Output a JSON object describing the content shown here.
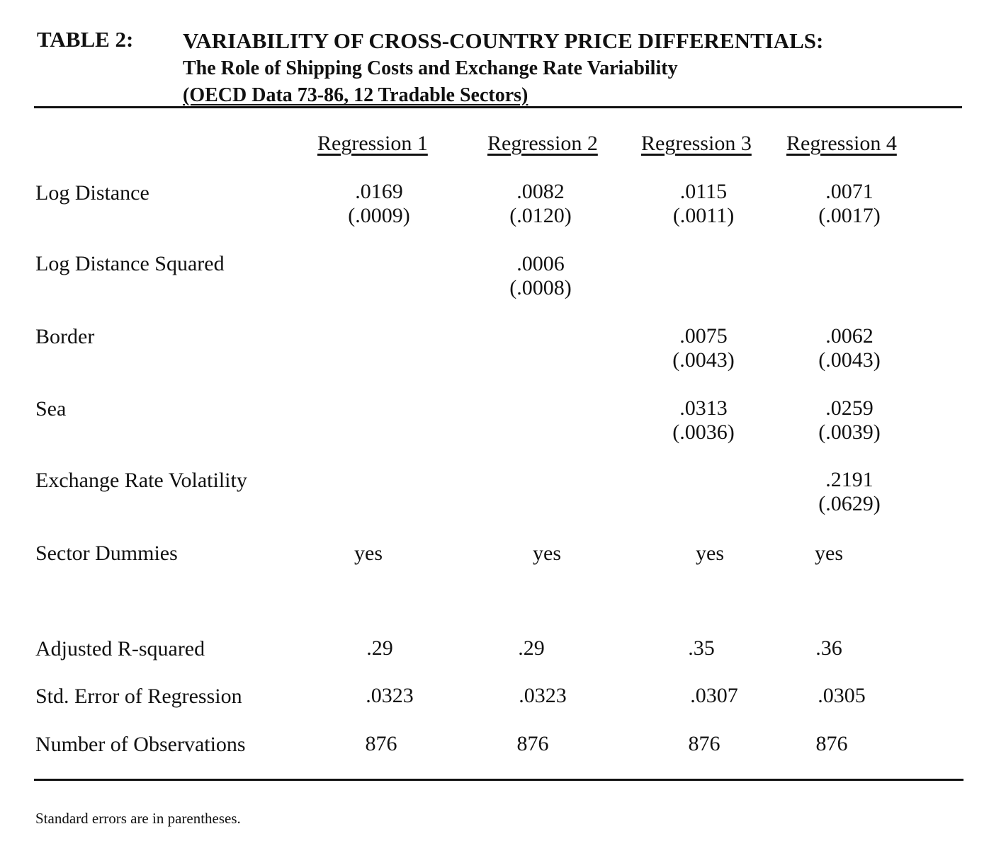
{
  "table_label": "TABLE 2:",
  "title": {
    "line1": "VARIABILITY OF CROSS-COUNTRY PRICE DIFFERENTIALS:",
    "line2": "The Role of Shipping Costs and Exchange Rate Variability",
    "line3": "(OECD Data 73-86, 12 Tradable Sectors)"
  },
  "columns": [
    "Regression 1",
    "Regression 2",
    "Regression 3",
    "Regression 4"
  ],
  "rows": [
    {
      "label": "Log Distance",
      "cells": [
        {
          "coef": ".0169",
          "se": "(.0009)"
        },
        {
          "coef": ".0082",
          "se": "(.0120)"
        },
        {
          "coef": ".0115",
          "se": "(.0011)"
        },
        {
          "coef": ".0071",
          "se": "(.0017)"
        }
      ]
    },
    {
      "label": "Log Distance Squared",
      "cells": [
        {
          "coef": "",
          "se": ""
        },
        {
          "coef": ".0006",
          "se": "(.0008)"
        },
        {
          "coef": "",
          "se": ""
        },
        {
          "coef": "",
          "se": ""
        }
      ]
    },
    {
      "label": "Border",
      "cells": [
        {
          "coef": "",
          "se": ""
        },
        {
          "coef": "",
          "se": ""
        },
        {
          "coef": ".0075",
          "se": "(.0043)"
        },
        {
          "coef": ".0062",
          "se": "(.0043)"
        }
      ]
    },
    {
      "label": "Sea",
      "cells": [
        {
          "coef": "",
          "se": ""
        },
        {
          "coef": "",
          "se": ""
        },
        {
          "coef": ".0313",
          "se": "(.0036)"
        },
        {
          "coef": ".0259",
          "se": "(.0039)"
        }
      ]
    },
    {
      "label": "Exchange Rate Volatility",
      "cells": [
        {
          "coef": "",
          "se": ""
        },
        {
          "coef": "",
          "se": ""
        },
        {
          "coef": "",
          "se": ""
        },
        {
          "coef": ".2191",
          "se": "(.0629)"
        }
      ]
    },
    {
      "label": "Sector Dummies",
      "cells": [
        {
          "coef": "yes",
          "se": ""
        },
        {
          "coef": "yes",
          "se": ""
        },
        {
          "coef": "yes",
          "se": ""
        },
        {
          "coef": "yes",
          "se": ""
        }
      ]
    }
  ],
  "stats": [
    {
      "label": "Adjusted R-squared",
      "values": [
        ".29",
        ".29",
        ".35",
        ".36"
      ]
    },
    {
      "label": "Std. Error of Regression",
      "values": [
        ".0323",
        ".0323",
        ".0307",
        ".0305"
      ]
    },
    {
      "label": "Number of Observations",
      "values": [
        "876",
        "876",
        "876",
        "876"
      ]
    }
  ],
  "footnote": "Standard errors are in parentheses."
}
